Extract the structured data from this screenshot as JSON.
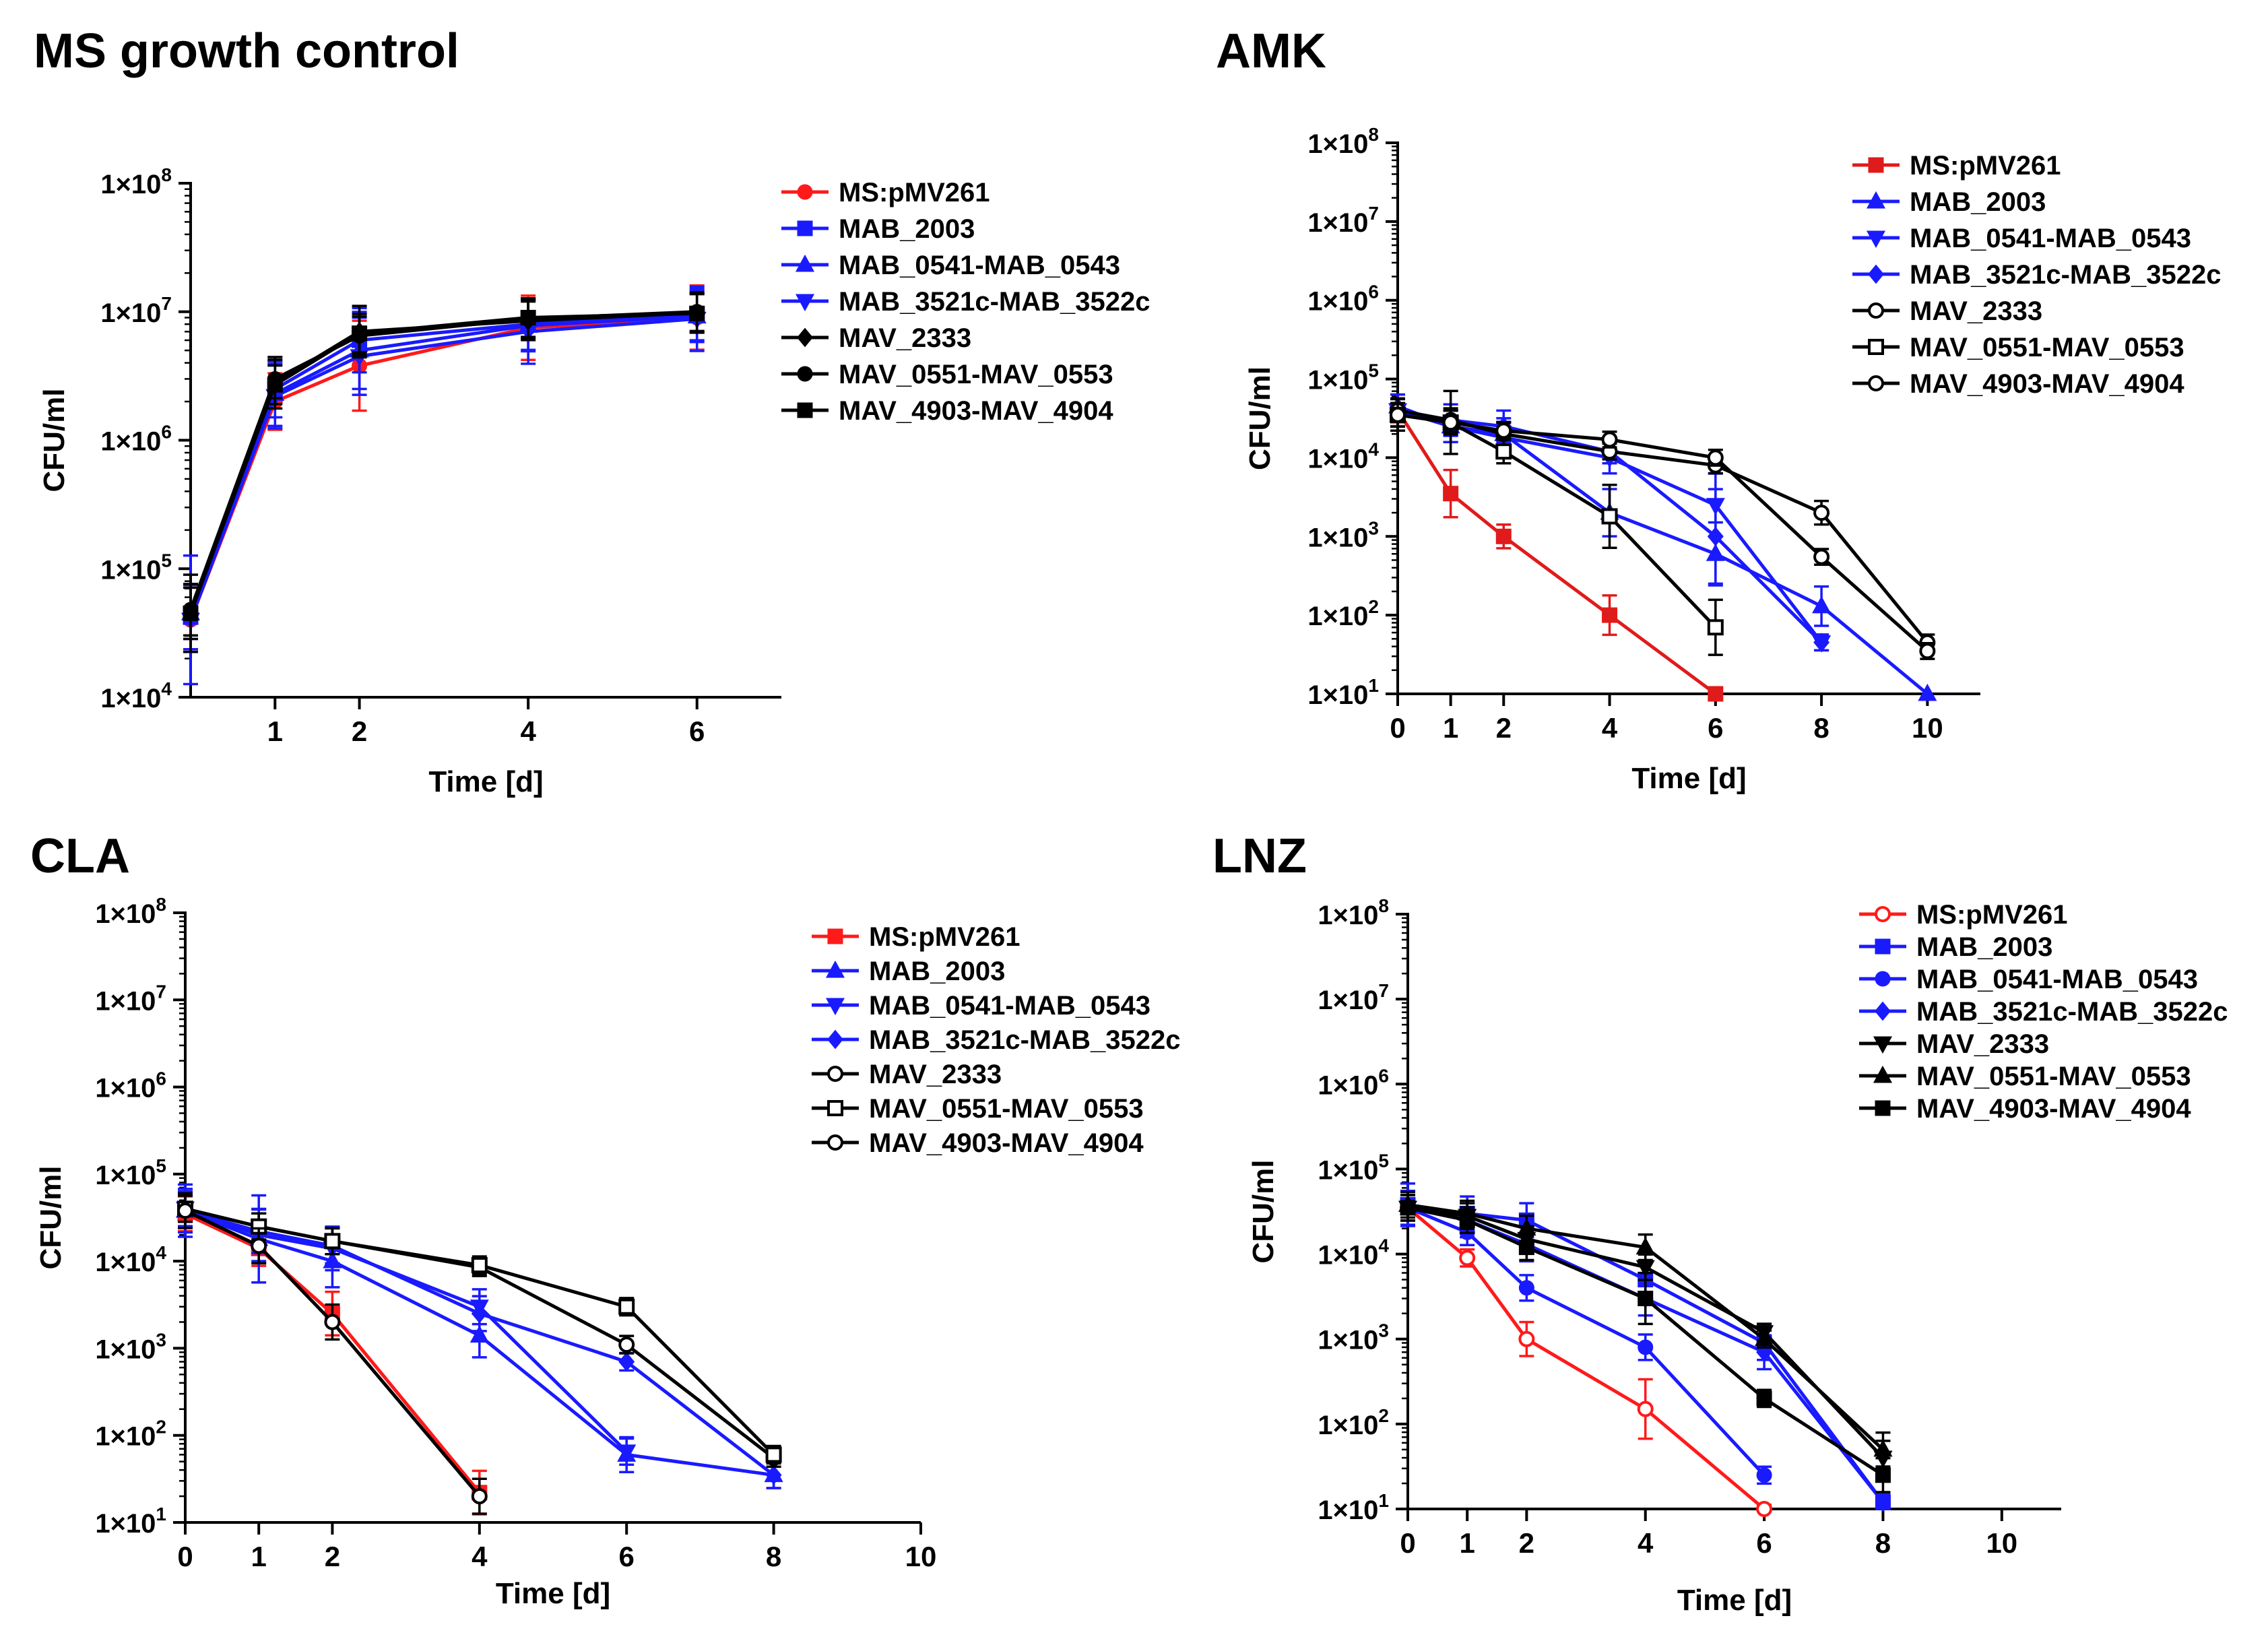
{
  "chart_data": [
    {
      "type": "line",
      "panel_title": "MS growth control",
      "xlabel": "Time [d]",
      "ylabel": "CFU/ml",
      "yscale": "log",
      "ylim": [
        10000,
        100000000
      ],
      "yticks": [
        "1×10^4",
        "1×10^5",
        "1×10^6",
        "1×10^7",
        "1×10^8"
      ],
      "xlim": [
        0,
        7
      ],
      "xticks": [
        1,
        2,
        4,
        6
      ],
      "legend": "right",
      "series": [
        {
          "name": "MS:pMV261",
          "color": "#ff1a1a",
          "marker": "circle",
          "x": [
            0,
            1,
            2,
            4,
            6
          ],
          "y": [
            40000,
            2000000,
            3800000,
            7500000,
            9000000
          ],
          "err": [
            0.25,
            0.22,
            0.35,
            0.25,
            0.25
          ]
        },
        {
          "name": "MAB_2003",
          "color": "#1a1aff",
          "marker": "square",
          "x": [
            0,
            1,
            2,
            4,
            6
          ],
          "y": [
            42000,
            2500000,
            6000000,
            8000000,
            9500000
          ],
          "err": [
            0.25,
            0.22,
            0.25,
            0.2,
            0.2
          ]
        },
        {
          "name": "MAB_0541-MAB_0543",
          "color": "#1a1aff",
          "marker": "triangle-up",
          "x": [
            0,
            1,
            2,
            4,
            6
          ],
          "y": [
            45000,
            2300000,
            5000000,
            7800000,
            9200000
          ],
          "err": [
            0.2,
            0.25,
            0.3,
            0.2,
            0.2
          ]
        },
        {
          "name": "MAB_3521c-MAB_3522c",
          "color": "#1a1aff",
          "marker": "triangle-down",
          "x": [
            0,
            1,
            2,
            4,
            6
          ],
          "y": [
            40000,
            2200000,
            4500000,
            7000000,
            8800000
          ],
          "err": [
            0.5,
            0.25,
            0.3,
            0.25,
            0.25
          ]
        },
        {
          "name": "MAV_2333",
          "color": "#000000",
          "marker": "diamond",
          "x": [
            0,
            1,
            2,
            4,
            6
          ],
          "y": [
            45000,
            2800000,
            7000000,
            8500000,
            9800000
          ],
          "err": [
            0.3,
            0.2,
            0.2,
            0.15,
            0.15
          ]
        },
        {
          "name": "MAV_0551-MAV_0553",
          "color": "#000000",
          "marker": "circle",
          "x": [
            0,
            1,
            2,
            4,
            6
          ],
          "y": [
            48000,
            3000000,
            6500000,
            8800000,
            10000000
          ],
          "err": [
            0.2,
            0.15,
            0.15,
            0.15,
            0.15
          ]
        },
        {
          "name": "MAV_4903-MAV_4904",
          "color": "#000000",
          "marker": "square",
          "x": [
            0,
            1,
            2,
            4,
            6
          ],
          "y": [
            45000,
            2700000,
            6800000,
            9000000,
            9700000
          ],
          "err": [
            0.2,
            0.15,
            0.15,
            0.15,
            0.15
          ]
        }
      ]
    },
    {
      "type": "line",
      "panel_title": "AMK",
      "xlabel": "Time [d]",
      "ylabel": "CFU/ml",
      "yscale": "log",
      "ylim": [
        10,
        100000000
      ],
      "yticks": [
        "1×10^1",
        "1×10^2",
        "1×10^3",
        "1×10^4",
        "1×10^5",
        "1×10^6",
        "1×10^7",
        "1×10^8"
      ],
      "xlim": [
        0,
        11
      ],
      "xticks": [
        0,
        1,
        2,
        4,
        6,
        8,
        10
      ],
      "legend": "top-right",
      "series": [
        {
          "name": "MS:pMV261",
          "color": "#e01b1b",
          "marker": "square",
          "x": [
            0,
            1,
            2,
            4,
            6
          ],
          "y": [
            40000,
            3500,
            1000,
            100,
            10
          ],
          "err": [
            0.2,
            0.3,
            0.15,
            0.25,
            0
          ]
        },
        {
          "name": "MAB_2003",
          "color": "#1a1aff",
          "marker": "triangle-up",
          "x": [
            0,
            1,
            2,
            4,
            6,
            8,
            10
          ],
          "y": [
            45000,
            25000,
            20000,
            2000,
            600,
            130,
            10
          ],
          "err": [
            0.15,
            0.2,
            0.2,
            0.3,
            0.4,
            0.25,
            0
          ]
        },
        {
          "name": "MAB_0541-MAB_0543",
          "color": "#1a1aff",
          "marker": "triangle-down",
          "x": [
            0,
            1,
            2,
            4,
            6,
            8
          ],
          "y": [
            40000,
            25000,
            18000,
            10000,
            2500,
            45
          ],
          "err": [
            0.15,
            0.2,
            0.2,
            0.2,
            0.4,
            0.1
          ]
        },
        {
          "name": "MAB_3521c-MAB_3522c",
          "color": "#1a1aff",
          "marker": "diamond",
          "x": [
            0,
            1,
            2,
            4,
            6,
            8
          ],
          "y": [
            40000,
            30000,
            25000,
            12000,
            1000,
            45
          ],
          "err": [
            0.15,
            0.2,
            0.2,
            0.15,
            0.6,
            0.1
          ]
        },
        {
          "name": "MAV_2333",
          "color": "#000000",
          "marker": "circle-open",
          "x": [
            0,
            1,
            2,
            4,
            6,
            8,
            10
          ],
          "y": [
            40000,
            30000,
            20000,
            12000,
            8000,
            2000,
            45
          ],
          "err": [
            0.15,
            0.15,
            0.15,
            0.1,
            0.1,
            0.15,
            0.1
          ]
        },
        {
          "name": "MAV_0551-MAV_0553",
          "color": "#000000",
          "marker": "square-open",
          "x": [
            0,
            1,
            2,
            4,
            6
          ],
          "y": [
            35000,
            28000,
            12000,
            1800,
            70
          ],
          "err": [
            0.2,
            0.4,
            0.15,
            0.4,
            0.35
          ]
        },
        {
          "name": "MAV_4903-MAV_4904",
          "color": "#000000",
          "marker": "triangle-open",
          "x": [
            0,
            1,
            2,
            4,
            6,
            8,
            10
          ],
          "y": [
            35000,
            28000,
            22000,
            17000,
            10000,
            550,
            35
          ],
          "err": [
            0.15,
            0.15,
            0.1,
            0.1,
            0.1,
            0.1,
            0.1
          ]
        }
      ]
    },
    {
      "type": "line",
      "panel_title": "CLA",
      "xlabel": "Time [d]",
      "ylabel": "CFU/ml",
      "yscale": "log",
      "ylim": [
        10,
        100000000
      ],
      "yticks": [
        "1×10^1",
        "1×10^2",
        "1×10^3",
        "1×10^4",
        "1×10^5",
        "1×10^6",
        "1×10^7",
        "1×10^8"
      ],
      "xlim": [
        0,
        10
      ],
      "xticks": [
        0,
        1,
        2,
        4,
        6,
        8,
        10
      ],
      "legend": "top-right",
      "series": [
        {
          "name": "MS:pMV261",
          "color": "#ff1a1a",
          "marker": "square",
          "x": [
            0,
            1,
            2,
            4
          ],
          "y": [
            35000,
            14000,
            2500,
            22
          ],
          "err": [
            0.2,
            0.2,
            0.25,
            0.25
          ]
        },
        {
          "name": "MAB_2003",
          "color": "#1a1aff",
          "marker": "triangle-up",
          "x": [
            0,
            1,
            2,
            4,
            6,
            8
          ],
          "y": [
            38000,
            18000,
            10000,
            1400,
            60,
            35
          ],
          "err": [
            0.3,
            0.5,
            0.3,
            0.25,
            0.2,
            0.15
          ]
        },
        {
          "name": "MAB_0541-MAB_0543",
          "color": "#1a1aff",
          "marker": "triangle-down",
          "x": [
            0,
            1,
            2,
            4,
            6
          ],
          "y": [
            40000,
            20000,
            14000,
            3000,
            65
          ],
          "err": [
            0.2,
            0.3,
            0.25,
            0.2,
            0.15
          ]
        },
        {
          "name": "MAB_3521c-MAB_3522c",
          "color": "#1a1aff",
          "marker": "diamond",
          "x": [
            0,
            1,
            2,
            4,
            6,
            8
          ],
          "y": [
            38000,
            22000,
            15000,
            2500,
            700,
            35
          ],
          "err": [
            0.25,
            0.25,
            0.2,
            0.2,
            0.1,
            0.15
          ]
        },
        {
          "name": "MAV_2333",
          "color": "#000000",
          "marker": "circle-open",
          "x": [
            0,
            1,
            2,
            4,
            6,
            8
          ],
          "y": [
            40000,
            25000,
            17000,
            8500,
            1100,
            55
          ],
          "err": [
            0.15,
            0.15,
            0.15,
            0.1,
            0.1,
            0.1
          ]
        },
        {
          "name": "MAV_0551-MAV_0553",
          "color": "#000000",
          "marker": "square-open",
          "x": [
            0,
            1,
            2,
            4,
            6,
            8
          ],
          "y": [
            40000,
            25000,
            17000,
            9000,
            3000,
            60
          ],
          "err": [
            0.15,
            0.15,
            0.15,
            0.1,
            0.1,
            0.1
          ]
        },
        {
          "name": "MAV_4903-MAV_4904",
          "color": "#000000",
          "marker": "triangle-open",
          "x": [
            0,
            1,
            2,
            4
          ],
          "y": [
            38000,
            15000,
            2000,
            20
          ],
          "err": [
            0.2,
            0.2,
            0.2,
            0.2
          ]
        }
      ]
    },
    {
      "type": "line",
      "panel_title": "LNZ",
      "xlabel": "Time [d]",
      "ylabel": "CFU/ml",
      "yscale": "log",
      "ylim": [
        10,
        100000000
      ],
      "yticks": [
        "1×10^1",
        "1×10^2",
        "1×10^3",
        "1×10^4",
        "1×10^5",
        "1×10^6",
        "1×10^7",
        "1×10^8"
      ],
      "xlim": [
        0,
        11
      ],
      "xticks": [
        0,
        1,
        2,
        4,
        6,
        8,
        10
      ],
      "legend": "top-right",
      "series": [
        {
          "name": "MS:pMV261",
          "color": "#ff1a1a",
          "marker": "triangle-open",
          "x": [
            0,
            1,
            2,
            4,
            6
          ],
          "y": [
            35000,
            9000,
            1000,
            150,
            10
          ],
          "err": [
            0.15,
            0.1,
            0.2,
            0.35,
            0.05
          ]
        },
        {
          "name": "MAB_2003",
          "color": "#1a1aff",
          "marker": "square",
          "x": [
            0,
            1,
            2,
            4,
            6,
            8
          ],
          "y": [
            38000,
            30000,
            25000,
            5000,
            900,
            12
          ],
          "err": [
            0.25,
            0.2,
            0.2,
            0.2,
            0.2,
            0.1
          ]
        },
        {
          "name": "MAB_0541-MAB_0543",
          "color": "#1a1aff",
          "marker": "circle",
          "x": [
            0,
            1,
            2,
            4,
            6
          ],
          "y": [
            35000,
            18000,
            4000,
            800,
            25
          ],
          "err": [
            0.15,
            0.15,
            0.15,
            0.15,
            0.1
          ]
        },
        {
          "name": "MAB_3521c-MAB_3522c",
          "color": "#1a1aff",
          "marker": "diamond",
          "x": [
            0,
            1,
            2,
            4,
            6,
            8
          ],
          "y": [
            35000,
            25000,
            13000,
            3000,
            700,
            12
          ],
          "err": [
            0.2,
            0.2,
            0.2,
            0.2,
            0.2,
            0.1
          ]
        },
        {
          "name": "MAV_2333",
          "color": "#000000",
          "marker": "triangle-down",
          "x": [
            0,
            1,
            2,
            4,
            6,
            8
          ],
          "y": [
            35000,
            28000,
            15000,
            7000,
            1200,
            40
          ],
          "err": [
            0.15,
            0.15,
            0.15,
            0.15,
            0.1,
            0.2
          ]
        },
        {
          "name": "MAV_0551-MAV_0553",
          "color": "#000000",
          "marker": "triangle-up",
          "x": [
            0,
            1,
            2,
            4,
            6,
            8
          ],
          "y": [
            38000,
            30000,
            20000,
            12000,
            1000,
            50
          ],
          "err": [
            0.15,
            0.15,
            0.15,
            0.15,
            0.1,
            0.2
          ]
        },
        {
          "name": "MAV_4903-MAV_4904",
          "color": "#000000",
          "marker": "square",
          "x": [
            0,
            1,
            2,
            4,
            6,
            8
          ],
          "y": [
            35000,
            25000,
            12000,
            3000,
            200,
            25
          ],
          "err": [
            0.15,
            0.15,
            0.15,
            0.3,
            0.1,
            0.2
          ]
        }
      ]
    }
  ]
}
